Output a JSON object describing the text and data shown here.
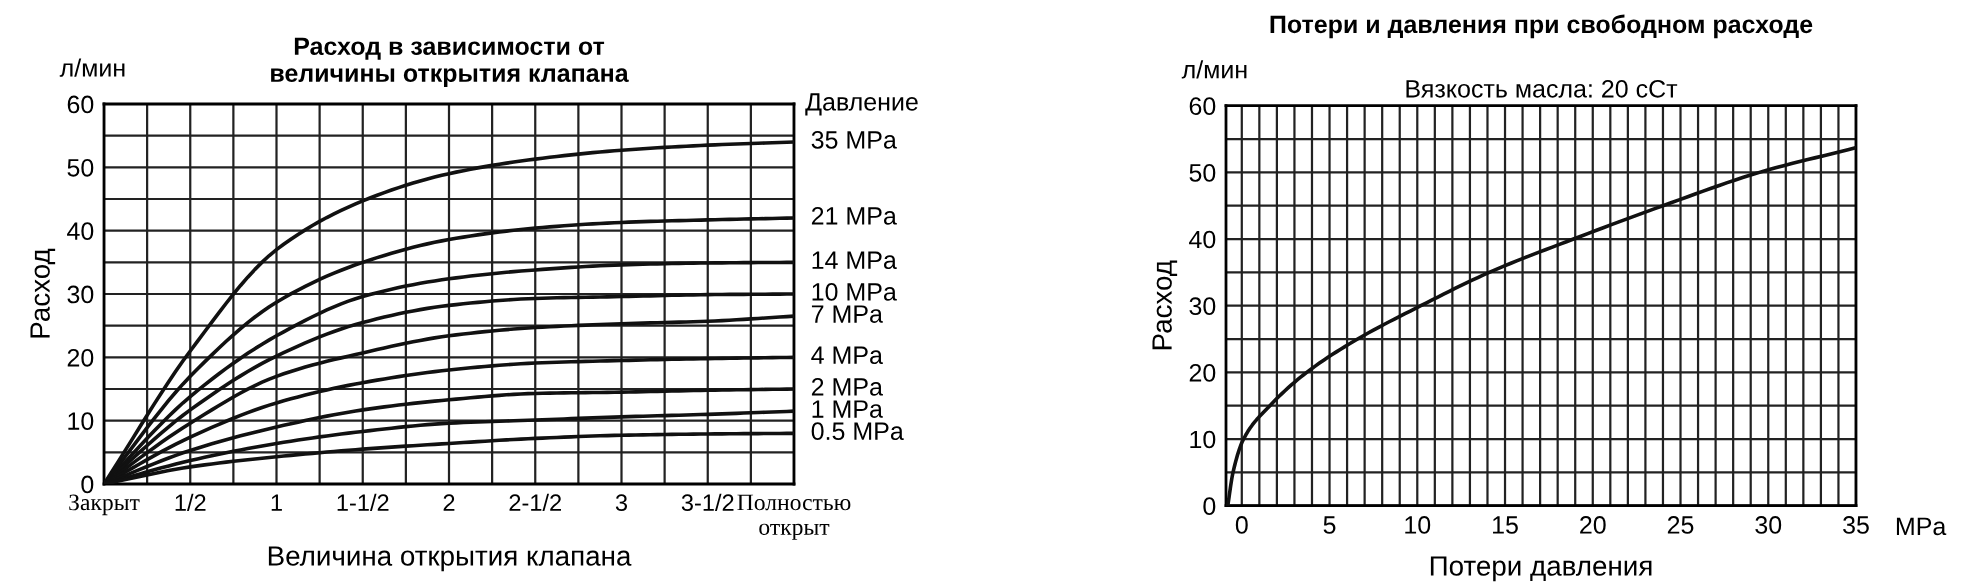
{
  "chart_data": [
    {
      "type": "line",
      "title": "Расход в зависимости от\nвеличины открытия клапана",
      "xlabel": "Величина открытия клапана",
      "ylabel": "Расход",
      "legend_title": "Давление",
      "annotations": [
        "л/мин"
      ],
      "categories": [
        "Закрыт",
        "1/2",
        "1",
        "1-1/2",
        "2",
        "2-1/2",
        "3",
        "3-1/2",
        "Полностью\nоткрыт"
      ],
      "ylim": [
        0,
        60
      ],
      "yticks": [
        0,
        10,
        20,
        30,
        40,
        50,
        60
      ],
      "grid": true,
      "legend": false,
      "line_style": "solid",
      "marker": "none",
      "series": [
        {
          "name": "35 MPa",
          "color": "#111111",
          "values": [
            0,
            21,
            37,
            44.7,
            49,
            51.3,
            52.7,
            53.5,
            54
          ]
        },
        {
          "name": "21 MPa",
          "color": "#111111",
          "values": [
            0,
            17,
            28.7,
            35,
            38.6,
            40.4,
            41.3,
            41.7,
            42
          ]
        },
        {
          "name": "14 MPa",
          "color": "#111111",
          "values": [
            0,
            13.8,
            23.4,
            29.6,
            32.4,
            33.8,
            34.6,
            34.9,
            35
          ]
        },
        {
          "name": "10 MPa",
          "color": "#111111",
          "values": [
            0,
            11.7,
            20.2,
            25.5,
            28.2,
            29.3,
            29.6,
            29.9,
            30
          ]
        },
        {
          "name": "7 MPa",
          "color": "#111111",
          "values": [
            0,
            9.6,
            17,
            20.7,
            23.4,
            24.7,
            25.3,
            25.7,
            26.5
          ]
        },
        {
          "name": "4 MPa",
          "color": "#111111",
          "values": [
            0,
            7.4,
            12.8,
            16,
            18,
            19.1,
            19.5,
            19.8,
            20
          ]
        },
        {
          "name": "2 MPa",
          "color": "#111111",
          "values": [
            0,
            5.3,
            9,
            11.7,
            13.3,
            14.3,
            14.5,
            14.8,
            15
          ]
        },
        {
          "name": "1 MPa",
          "color": "#111111",
          "values": [
            0,
            3.7,
            6.4,
            8.3,
            9.6,
            10.1,
            10.6,
            11,
            11.5
          ]
        },
        {
          "name": "0.5 MPa",
          "color": "#111111",
          "values": [
            0,
            2.7,
            4.3,
            5.5,
            6.4,
            7.2,
            7.7,
            7.9,
            8
          ]
        }
      ]
    },
    {
      "type": "line",
      "title": "Потери и давления при свободном расходе",
      "subtitle": "Вязкость масла: 20 сСт",
      "xlabel": "Потери давления",
      "ylabel": "Расход",
      "annotations": [
        "л/мин",
        "MPa"
      ],
      "xlim": [
        -0.9,
        35
      ],
      "xticks": [
        0,
        5,
        10,
        15,
        20,
        25,
        30,
        35
      ],
      "ylim": [
        0,
        60
      ],
      "yticks": [
        0,
        10,
        20,
        30,
        40,
        50,
        60
      ],
      "grid": true,
      "legend": false,
      "line_style": "solid",
      "marker": "none",
      "series": [
        {
          "color": "#111111",
          "x": [
            -0.8,
            -0.5,
            0.1,
            1.6,
            3.7,
            6.6,
            10.2,
            14.1,
            18.9,
            24,
            29.5,
            35
          ],
          "values": [
            0,
            5,
            10,
            15,
            20,
            25,
            30,
            35,
            40,
            45,
            50,
            53.7
          ]
        }
      ]
    }
  ]
}
